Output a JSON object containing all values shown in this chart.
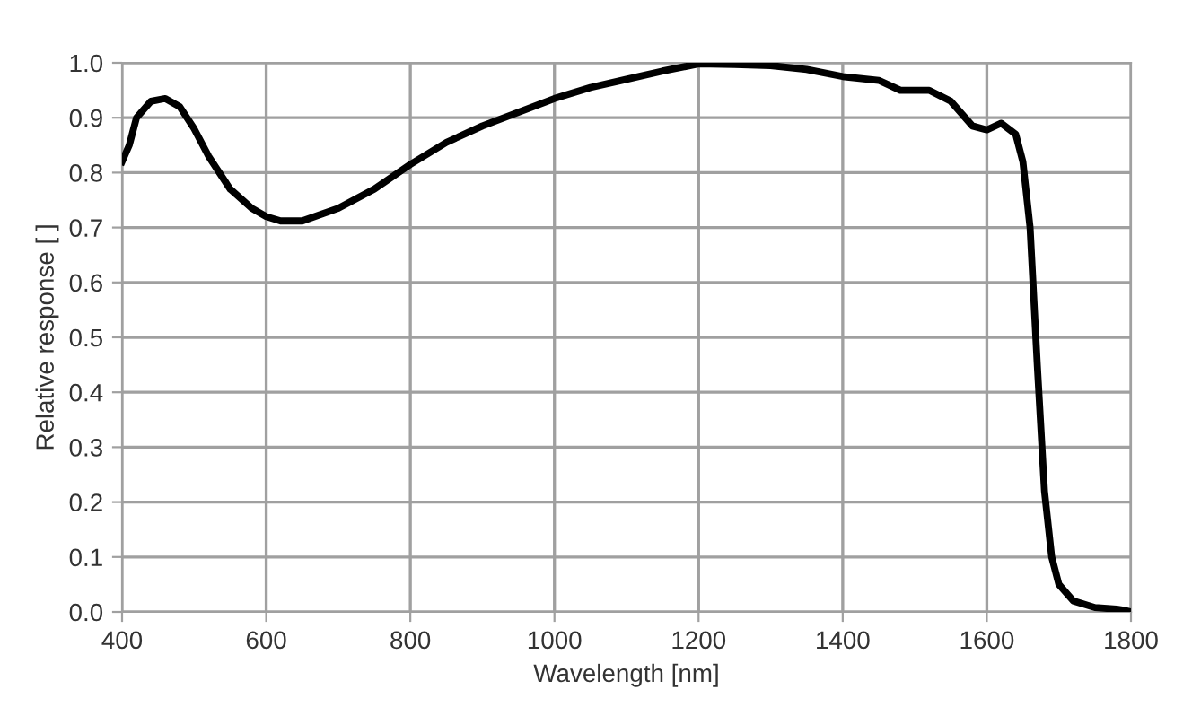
{
  "chart_data": {
    "type": "line",
    "xlabel": "Wavelength [nm]",
    "ylabel": "Relative response [ ]",
    "xlim": [
      400,
      1800
    ],
    "ylim": [
      0,
      1.0
    ],
    "xticks": [
      400,
      600,
      800,
      1000,
      1200,
      1400,
      1600,
      1800
    ],
    "yticks": [
      {
        "value": 0,
        "label": "0.0"
      },
      {
        "value": 0.1,
        "label": "0.1"
      },
      {
        "value": 0.2,
        "label": "0.2"
      },
      {
        "value": 0.3,
        "label": "0.3"
      },
      {
        "value": 0.4,
        "label": "0.4"
      },
      {
        "value": 0.5,
        "label": "0.5"
      },
      {
        "value": 0.6,
        "label": "0.6"
      },
      {
        "value": 0.7,
        "label": "0.7"
      },
      {
        "value": 0.8,
        "label": "0.8"
      },
      {
        "value": 0.9,
        "label": "0.9"
      },
      {
        "value": 1.0,
        "label": "1.0"
      }
    ],
    "grid": true,
    "line_style": "solid",
    "marker": "none",
    "series": [
      {
        "color": "#000000",
        "x": [
          400,
          410,
          420,
          440,
          460,
          480,
          500,
          520,
          550,
          580,
          600,
          620,
          650,
          700,
          750,
          800,
          850,
          900,
          950,
          1000,
          1050,
          1100,
          1150,
          1200,
          1250,
          1300,
          1350,
          1400,
          1450,
          1480,
          1520,
          1550,
          1580,
          1600,
          1620,
          1640,
          1650,
          1660,
          1670,
          1680,
          1690,
          1700,
          1720,
          1750,
          1780,
          1790,
          1800
        ],
        "values": [
          0.82,
          0.85,
          0.9,
          0.93,
          0.935,
          0.92,
          0.88,
          0.83,
          0.77,
          0.735,
          0.72,
          0.712,
          0.712,
          0.735,
          0.77,
          0.815,
          0.855,
          0.885,
          0.91,
          0.935,
          0.955,
          0.97,
          0.985,
          0.998,
          0.997,
          0.995,
          0.988,
          0.975,
          0.968,
          0.95,
          0.95,
          0.93,
          0.885,
          0.878,
          0.89,
          0.87,
          0.82,
          0.7,
          0.45,
          0.22,
          0.1,
          0.05,
          0.02,
          0.008,
          0.005,
          0.003,
          0.0
        ]
      }
    ]
  }
}
